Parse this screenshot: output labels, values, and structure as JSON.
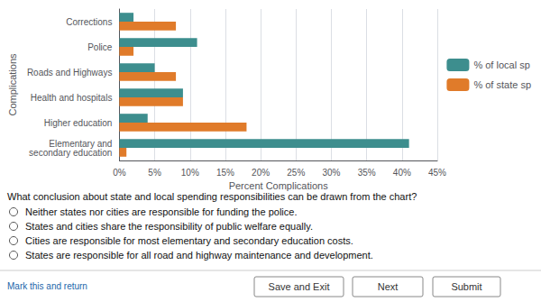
{
  "chart_data": {
    "type": "bar",
    "orientation": "horizontal",
    "xlabel": "Percent Complications",
    "ylabel": "Complications",
    "categories": [
      "Corrections",
      "Police",
      "Roads and Highways",
      "Health and hospitals",
      "Higher education",
      "Elementary and\nsecondary education"
    ],
    "series": [
      {
        "name": "% of local sp",
        "color": "#3d8e8e",
        "values": [
          2,
          11,
          5,
          9,
          4,
          41
        ]
      },
      {
        "name": "% of state sp",
        "color": "#e07b2a",
        "values": [
          8,
          2,
          8,
          9,
          18,
          1
        ]
      }
    ],
    "xlim": [
      0,
      45
    ],
    "xticks": [
      {
        "value": 0,
        "label": "0%"
      },
      {
        "value": 5,
        "label": "5%"
      },
      {
        "value": 10,
        "label": "10%"
      },
      {
        "value": 15,
        "label": "15%"
      },
      {
        "value": 20,
        "label": "20%"
      },
      {
        "value": 25,
        "label": "25%"
      },
      {
        "value": 30,
        "label": "30%"
      },
      {
        "value": 35,
        "label": "35%"
      },
      {
        "value": 40,
        "label": "40%"
      },
      {
        "value": 45,
        "label": "45%"
      }
    ],
    "grid": true,
    "legend": "right",
    "annotations": [
      "What conclusion about state and local spending responsibilities can be drawn from the chart?",
      "Neither states nor cities are responsible for funding the police.",
      "States and cities share the responsibility of public welfare equally.",
      "Cities are responsible for most elementary and secondary education costs.",
      "States are responsible for all road and highway maintenance and development.",
      "Mark this and return",
      "Save and Exit",
      "Next",
      "Submit"
    ]
  }
}
